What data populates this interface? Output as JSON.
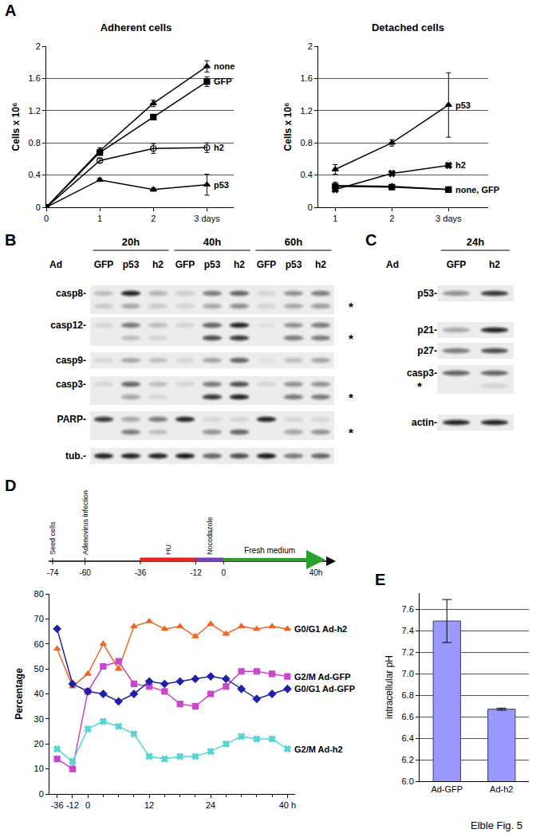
{
  "figure_label": "Elble Fig. 5",
  "chart_data": [
    {
      "panel": "A",
      "type": "line",
      "title": "Adherent cells",
      "ylabel": "Cells x 10⁶",
      "x": [
        0,
        1,
        2,
        3
      ],
      "xlim": [
        0,
        3.5
      ],
      "xticks": [
        0,
        1,
        2,
        {
          "value": 3,
          "label": "3 days"
        }
      ],
      "ylim": [
        0,
        2
      ],
      "yticks": [
        0,
        0.4,
        0.8,
        1.2,
        1.6,
        2
      ],
      "grid": true,
      "series": [
        {
          "name": "none",
          "color": "#000000",
          "marker": "triangle",
          "values": [
            0,
            0.7,
            1.29,
            1.75
          ],
          "errors": [
            0,
            0.04,
            0.04,
            0.07
          ]
        },
        {
          "name": "GFP",
          "color": "#000000",
          "marker": "square",
          "values": [
            0,
            0.68,
            1.12,
            1.56
          ],
          "errors": [
            0,
            0.03,
            0.02,
            0.06
          ]
        },
        {
          "name": "h2",
          "color": "#000000",
          "marker": "circle-open",
          "values": [
            0,
            0.58,
            0.73,
            0.74
          ],
          "errors": [
            0,
            0.03,
            0.06,
            0.06
          ]
        },
        {
          "name": "p53",
          "color": "#000000",
          "marker": "triangle",
          "values": [
            0,
            0.34,
            0.22,
            0.28
          ],
          "errors": [
            0,
            0.02,
            0.02,
            0.13
          ]
        }
      ]
    },
    {
      "type": "line",
      "title": "Detached cells",
      "ylabel": "Cells x 10⁶",
      "x": [
        1,
        2,
        3
      ],
      "xlim": [
        0.7,
        3.7
      ],
      "xticks": [
        1,
        2,
        {
          "value": 3,
          "label": "3 days"
        }
      ],
      "ylim": [
        0,
        2
      ],
      "yticks": [
        0,
        0.4,
        0.8,
        1.2,
        1.6,
        2
      ],
      "grid": true,
      "series": [
        {
          "name": "p53",
          "color": "#000000",
          "marker": "triangle",
          "values": [
            0.47,
            0.8,
            1.27
          ],
          "errors": [
            0.06,
            0.04,
            0.4
          ]
        },
        {
          "name": "h2",
          "color": "#000000",
          "marker": "x",
          "values": [
            0.22,
            0.42,
            0.52
          ],
          "errors": [
            0.02,
            0.02,
            0.02
          ]
        },
        {
          "color": "#000000",
          "marker": "triangle",
          "values": [
            0.27,
            0.26,
            0.22
          ],
          "errors": [
            0.04,
            0.02,
            0.02
          ]
        },
        {
          "color": "#000000",
          "marker": "square",
          "values": [
            0.26,
            0.25,
            0.22
          ],
          "errors": [
            0.03,
            0.02,
            0.02
          ]
        }
      ],
      "annotations": [
        {
          "text": "none, GFP",
          "x": 3,
          "y": 0.22
        }
      ]
    },
    {
      "panel": "D",
      "type": "line",
      "ylabel": "Percentage",
      "categories": [
        "-36",
        "-12",
        "0",
        null,
        null,
        null,
        "12",
        null,
        null,
        null,
        "24",
        null,
        null,
        null,
        null,
        "40 h"
      ],
      "ylim": [
        0,
        80
      ],
      "yticks": [
        0,
        10,
        20,
        30,
        40,
        50,
        60,
        70,
        80
      ],
      "grid": false,
      "series": [
        {
          "name": "G0/G1 Ad-h2",
          "color": "#f26522",
          "marker": "triangle",
          "values": [
            58,
            43,
            48,
            60,
            50,
            67,
            69,
            66,
            67,
            63,
            68,
            64,
            67,
            66,
            67,
            66
          ]
        },
        {
          "name": "G2/M Ad-GFP",
          "color": "#cc44cc",
          "marker": "square",
          "values": [
            14,
            10,
            41,
            51,
            53,
            44,
            43,
            41,
            36,
            35,
            40,
            43,
            49,
            49,
            48,
            47
          ]
        },
        {
          "name": "G0/G1 Ad-GFP",
          "color": "#1f1fa8",
          "marker": "diamond",
          "values": [
            66,
            44,
            41,
            40,
            37,
            40,
            45,
            44,
            45,
            46,
            47,
            46,
            42,
            38,
            40,
            42
          ]
        },
        {
          "name": "G2/M Ad-h2",
          "color": "#55d4d4",
          "marker": "x",
          "values": [
            18,
            13,
            26,
            29,
            27,
            24,
            15,
            14,
            15,
            15,
            17,
            20,
            23,
            22,
            22,
            18
          ]
        }
      ]
    },
    {
      "panel": "E",
      "type": "bar",
      "ylabel": "intracellular pH",
      "categories": [
        "Ad-GFP",
        "Ad-h2"
      ],
      "values": [
        7.49,
        6.67
      ],
      "errors": [
        0.2,
        0.01
      ],
      "color": "#9999ff",
      "ylim": [
        6.0,
        7.75
      ],
      "yticks": [
        {
          "value": 6.0,
          "label": "6.0"
        },
        6.2,
        6.4,
        6.6,
        6.8,
        {
          "value": 7.0,
          "label": "7.0"
        },
        7.2,
        7.4,
        7.6
      ],
      "grid": true
    }
  ],
  "timeline": {
    "ticks": [
      -74,
      -60,
      -36,
      -12,
      0,
      {
        "value": 40,
        "label": "40h"
      }
    ],
    "events": [
      {
        "text": "Seed cells",
        "at": -74
      },
      {
        "text": "Adenovirus infection",
        "at": -60
      },
      {
        "text": "HU",
        "from": -36,
        "to": -12,
        "color": "#e8231d",
        "shape": "bar"
      },
      {
        "text": "Nocodazole",
        "from": -12,
        "to": 0,
        "color": "#7b3fc4",
        "shape": "bar"
      },
      {
        "text": "Fresh medium",
        "from": 0,
        "to": 40,
        "color": "#2aa12a",
        "shape": "arrow"
      }
    ]
  },
  "blots": [
    {
      "panel": "B",
      "time_labels": [
        "20h",
        "40h",
        "60h"
      ],
      "ad_label": "Ad",
      "lanes": [
        "GFP",
        "p53",
        "h2",
        "GFP",
        "p53",
        "h2",
        "GFP",
        "p53",
        "h2"
      ],
      "asterisk_text": "*",
      "rows": [
        {
          "label": "casp8-",
          "bands": [
            {
              "intensities": [
                0.2,
                0.9,
                0.25,
                0.15,
                0.5,
                0.6,
                0.1,
                0.4,
                0.5
              ],
              "asterisk": false
            },
            {
              "intensities": [
                0.15,
                0.3,
                0.15,
                0.1,
                0.3,
                0.4,
                0.1,
                0.3,
                0.35
              ],
              "asterisk": true
            }
          ]
        },
        {
          "label": "casp12-",
          "bands": [
            {
              "intensities": [
                0.1,
                0.5,
                0.2,
                0.1,
                0.6,
                0.9,
                0.05,
                0.4,
                0.5
              ],
              "asterisk": false
            },
            {
              "intensities": [
                0,
                0.2,
                0.1,
                0,
                0.7,
                0.8,
                0,
                0.5,
                0.5
              ],
              "asterisk": true
            }
          ]
        },
        {
          "label": "casp9-",
          "bands": [
            {
              "intensities": [
                0.1,
                0.3,
                0.2,
                0.1,
                0.3,
                0.6,
                0.05,
                0.2,
                0.3
              ],
              "asterisk": false
            }
          ]
        },
        {
          "label": "casp3-",
          "bands": [
            {
              "intensities": [
                0.1,
                0.6,
                0.2,
                0.1,
                0.5,
                0.7,
                0.1,
                0.4,
                0.4
              ],
              "asterisk": false
            },
            {
              "intensities": [
                0,
                0.3,
                0.1,
                0,
                0.8,
                0.9,
                0,
                0.5,
                0.5
              ],
              "asterisk": true
            }
          ]
        },
        {
          "label": "PARP-",
          "bands": [
            {
              "intensities": [
                0.8,
                0.3,
                0.5,
                0.9,
                0.1,
                0.1,
                0.9,
                0.1,
                0.1
              ],
              "asterisk": false
            },
            {
              "intensities": [
                0,
                0.5,
                0.2,
                0,
                0.4,
                0.6,
                0,
                0.3,
                0.4
              ],
              "asterisk": true
            }
          ]
        },
        {
          "label": "tub.-",
          "bands": [
            {
              "intensities": [
                0.9,
                0.9,
                0.9,
                0.95,
                0.6,
                0.7,
                0.95,
                0.5,
                0.6
              ],
              "asterisk": false
            }
          ]
        }
      ]
    },
    {
      "panel": "C",
      "time_labels": [
        "24h"
      ],
      "ad_label": "Ad",
      "lanes": [
        "GFP",
        "h2"
      ],
      "asterisk_text": "*",
      "rows": [
        {
          "label": "p53-",
          "bands": [
            {
              "intensities": [
                0.4,
                0.8
              ],
              "asterisk": false
            }
          ]
        },
        {
          "label": "p21-",
          "bands": [
            {
              "intensities": [
                0.3,
                0.9
              ],
              "asterisk": false
            }
          ]
        },
        {
          "label": "p27-",
          "bands": [
            {
              "intensities": [
                0.5,
                0.7
              ],
              "asterisk": false
            }
          ]
        },
        {
          "label": "casp3-",
          "bands": [
            {
              "intensities": [
                0.6,
                0.6
              ],
              "asterisk": false
            },
            {
              "intensities": [
                0,
                0.1
              ],
              "asterisk": true
            }
          ]
        },
        {
          "label": "actin-",
          "bands": [
            {
              "intensities": [
                0.9,
                0.9
              ],
              "asterisk": false
            }
          ]
        }
      ]
    }
  ]
}
